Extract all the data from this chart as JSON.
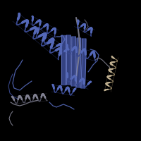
{
  "background_color": "#000000",
  "blue": "#5468b8",
  "blue_dark": "#3a4a90",
  "blue_light": "#7080cc",
  "gray": "#808090",
  "gray_dark": "#505060",
  "tan": "#c0b090",
  "tan_dark": "#908060",
  "figure_size": [
    2.0,
    2.0
  ],
  "dpi": 100,
  "xlim": [
    0,
    200
  ],
  "ylim": [
    0,
    200
  ]
}
